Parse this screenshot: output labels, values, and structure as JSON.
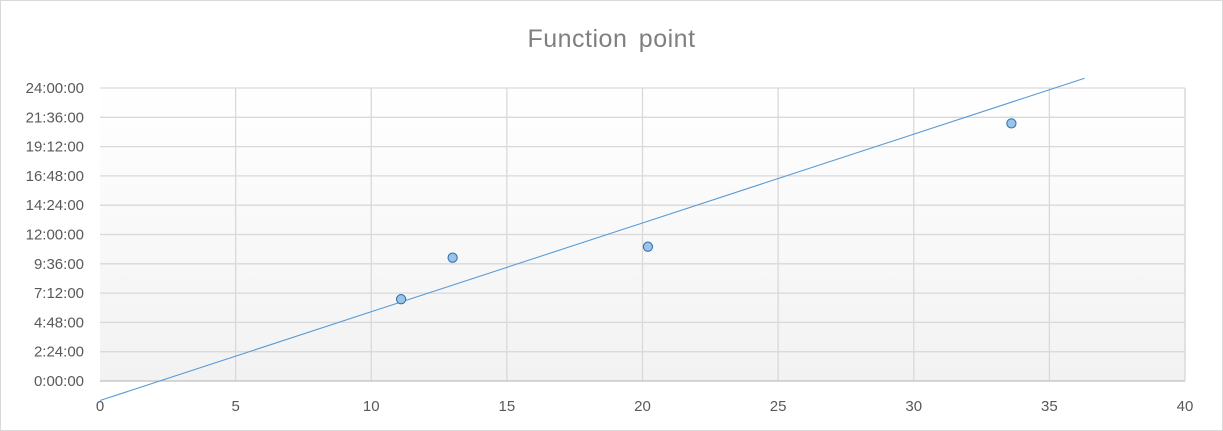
{
  "chart_data": {
    "type": "scatter",
    "title": "Function  point",
    "xlabel": "",
    "ylabel": "",
    "xlim": [
      0,
      40
    ],
    "ylim_hours": [
      0,
      24
    ],
    "x_ticks": [
      0,
      5,
      10,
      15,
      20,
      25,
      30,
      35,
      40
    ],
    "y_ticks": [
      "0:00:00",
      "2:24:00",
      "4:48:00",
      "7:12:00",
      "9:36:00",
      "12:00:00",
      "14:24:00",
      "16:48:00",
      "19:12:00",
      "21:36:00",
      "24:00:00"
    ],
    "y_tick_hours": [
      0,
      2.4,
      4.8,
      7.2,
      9.6,
      12,
      14.4,
      16.8,
      19.2,
      21.6,
      24
    ],
    "grid": true,
    "legend": "none",
    "series": [
      {
        "points": [
          {
            "x": 11.1,
            "y_hours": 6.7
          },
          {
            "x": 13.0,
            "y_hours": 10.1
          },
          {
            "x": 20.2,
            "y_hours": 11.0
          },
          {
            "x": 33.6,
            "y_hours": 21.1
          }
        ],
        "marker_color": "#9dc3e6",
        "marker_edge": "#2e75b6"
      }
    ],
    "trendline": {
      "type": "linear",
      "x_range": [
        0,
        36.3
      ],
      "y_hours_range": [
        -1.6,
        24.8
      ],
      "color": "#5b9bd5"
    },
    "plot_background_gradient": [
      "#ffffff",
      "#f2f2f2"
    ]
  }
}
